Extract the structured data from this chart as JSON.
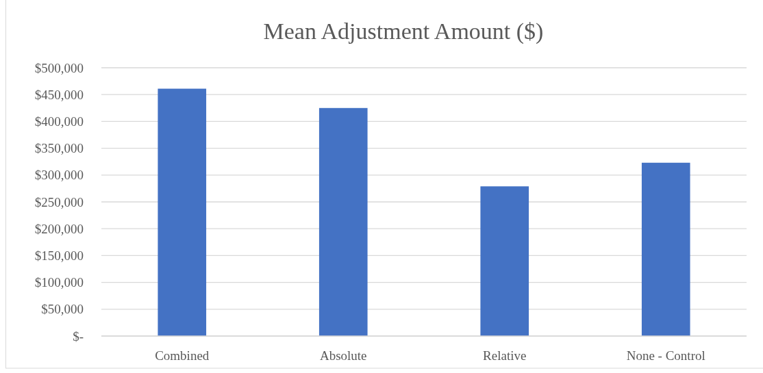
{
  "chart_data": {
    "type": "bar",
    "title": "Mean Adjustment Amount ($)",
    "categories": [
      "Combined",
      "Absolute",
      "Relative",
      "None - Control"
    ],
    "values": [
      461000,
      425000,
      279000,
      323000
    ],
    "color": "#4472c4",
    "ylim": [
      0,
      500000
    ],
    "yticks": [
      {
        "value": 0,
        "label": "$-"
      },
      {
        "value": 50000,
        "label": "$50,000"
      },
      {
        "value": 100000,
        "label": "$100,000"
      },
      {
        "value": 150000,
        "label": "$150,000"
      },
      {
        "value": 200000,
        "label": "$200,000"
      },
      {
        "value": 250000,
        "label": "$250,000"
      },
      {
        "value": 300000,
        "label": "$300,000"
      },
      {
        "value": 350000,
        "label": "$350,000"
      },
      {
        "value": 400000,
        "label": "$400,000"
      },
      {
        "value": 450000,
        "label": "$450,000"
      },
      {
        "value": 500000,
        "label": "$500,000"
      }
    ],
    "grid": "y"
  }
}
